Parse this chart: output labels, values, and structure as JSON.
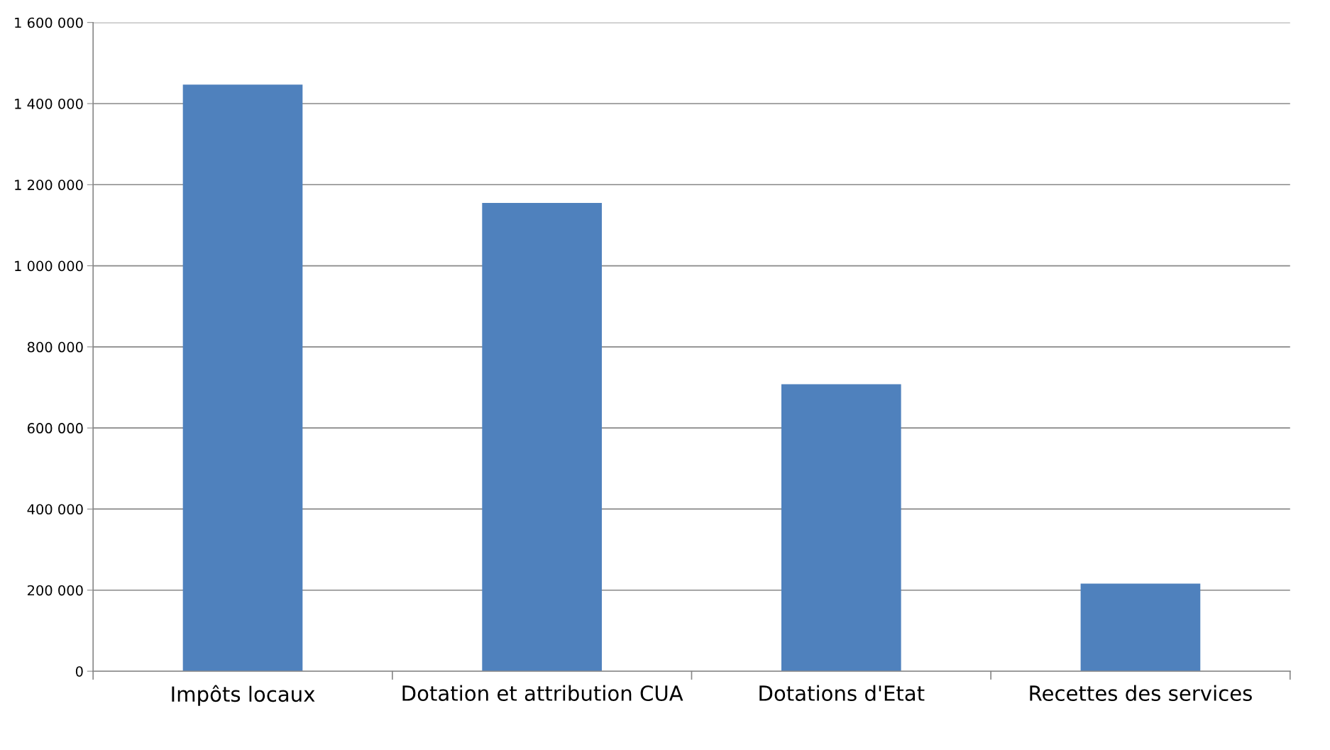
{
  "chart_data": {
    "type": "bar",
    "categories": [
      "Impôts locaux",
      "Dotation et attribution CUA",
      "Dotations d'Etat",
      "Recettes des services"
    ],
    "values": [
      1447000,
      1155000,
      708000,
      216000
    ],
    "color": "#4f81bd",
    "ylim": [
      0,
      1600000
    ],
    "yticks": [
      0,
      {
        "value": 200000,
        "label": "200 000"
      },
      {
        "value": 400000,
        "label": "400 000"
      },
      {
        "value": 600000,
        "label": "600 000"
      },
      {
        "value": 800000,
        "label": "800 000"
      },
      {
        "value": 1000000,
        "label": "1 000 000"
      },
      {
        "value": 1200000,
        "label": "1 200 000"
      },
      {
        "value": 1400000,
        "label": "1 400 000"
      },
      {
        "value": 1600000,
        "label": "1 600 000"
      }
    ],
    "grid": "y"
  }
}
